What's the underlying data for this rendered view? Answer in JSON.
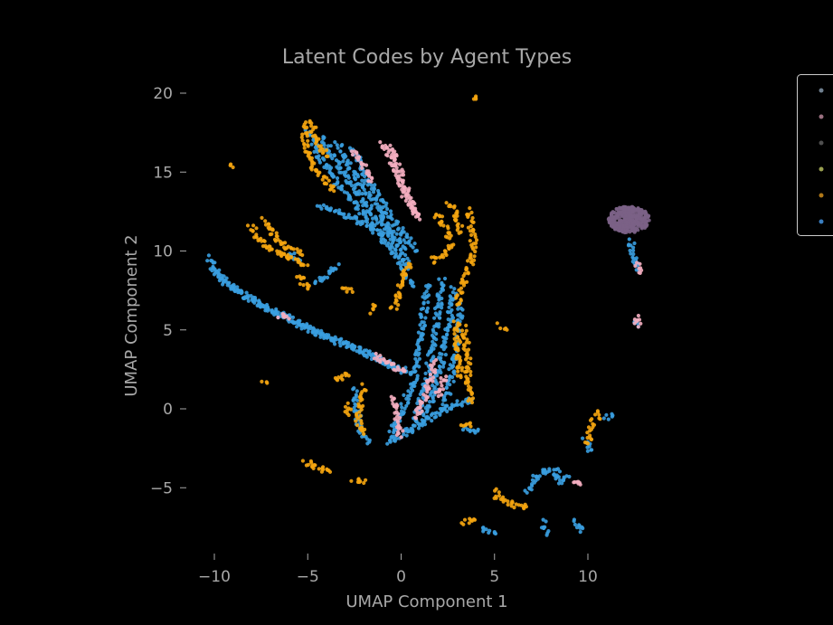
{
  "colors": {
    "background": "#000000",
    "text": "#a8a8a8",
    "orange": "#f5a50f",
    "blue": "#3a9ee0",
    "pink": "#f4aec0",
    "purple": "#7b6286",
    "legend_border": "#cccccc"
  },
  "chart_data": {
    "type": "scatter",
    "title": "Latent Codes by Agent Types",
    "xlabel": "UMAP Component 1",
    "ylabel": "UMAP Component 2",
    "xlim": [
      -11.5,
      14.5
    ],
    "ylim": [
      -9.2,
      20.8
    ],
    "x_ticks": [
      -10,
      -5,
      0,
      5,
      10
    ],
    "x_tick_labels": [
      "−10",
      "−5",
      "0",
      "5",
      "10"
    ],
    "y_ticks": [
      -5,
      0,
      5,
      10,
      15,
      20
    ],
    "y_tick_labels": [
      "−5",
      "0",
      "5",
      "10",
      "15",
      "20"
    ],
    "grid": false,
    "legend_position": "upper-right (partially cropped)",
    "legend_entries": [
      {
        "marker_color": "#6f7f8f"
      },
      {
        "marker_color": "#9a7080"
      },
      {
        "marker_color": "#4f4f4f"
      },
      {
        "marker_color": "#9aa050"
      },
      {
        "marker_color": "#b07818"
      },
      {
        "marker_color": "#3a7ec0"
      }
    ],
    "series": [
      {
        "color": "#3a9ee0",
        "paths": [
          [
            [
              -10.3,
              9.6
            ],
            [
              -9.6,
              8.2
            ],
            [
              -8.0,
              6.9
            ],
            [
              -6.0,
              5.7
            ],
            [
              -4.0,
              4.6
            ],
            [
              -2.0,
              3.7
            ],
            [
              -0.5,
              2.8
            ],
            [
              0.5,
              2.2
            ]
          ],
          [
            [
              -10.1,
              9.0
            ],
            [
              -9.3,
              7.9
            ],
            [
              -7.5,
              6.6
            ],
            [
              -5.5,
              5.4
            ],
            [
              -3.5,
              4.3
            ],
            [
              -1.5,
              3.3
            ],
            [
              0.0,
              2.4
            ]
          ],
          [
            [
              -5.0,
              17.6
            ],
            [
              -4.2,
              15.6
            ],
            [
              -3.2,
              14.0
            ],
            [
              -2.0,
              12.4
            ],
            [
              -1.0,
              10.8
            ],
            [
              0.0,
              9.2
            ],
            [
              0.6,
              7.8
            ]
          ],
          [
            [
              -4.2,
              17.2
            ],
            [
              -3.4,
              15.4
            ],
            [
              -2.4,
              13.8
            ],
            [
              -1.4,
              12.2
            ],
            [
              -0.4,
              10.6
            ],
            [
              0.4,
              9.0
            ]
          ],
          [
            [
              -3.4,
              16.8
            ],
            [
              -2.6,
              15.0
            ],
            [
              -1.6,
              13.4
            ],
            [
              -0.8,
              11.8
            ],
            [
              0.2,
              10.2
            ]
          ],
          [
            [
              -2.6,
              16.4
            ],
            [
              -1.8,
              14.6
            ],
            [
              -1.0,
              13.0
            ],
            [
              -0.2,
              11.6
            ],
            [
              0.8,
              10.0
            ]
          ],
          [
            [
              -4.4,
              12.8
            ],
            [
              -3.2,
              12.4
            ],
            [
              -2.0,
              11.8
            ],
            [
              -1.0,
              11.0
            ]
          ],
          [
            [
              1.4,
              7.8
            ],
            [
              1.2,
              6.0
            ],
            [
              1.0,
              4.0
            ],
            [
              0.7,
              2.0
            ],
            [
              0.2,
              0.4
            ],
            [
              -0.4,
              -1.2
            ],
            [
              -0.6,
              -2.0
            ]
          ],
          [
            [
              2.2,
              8.2
            ],
            [
              2.0,
              6.4
            ],
            [
              1.8,
              4.6
            ],
            [
              1.5,
              2.8
            ],
            [
              1.2,
              1.0
            ],
            [
              0.8,
              -0.6
            ],
            [
              0.4,
              -1.4
            ]
          ],
          [
            [
              2.8,
              7.6
            ],
            [
              2.6,
              5.8
            ],
            [
              2.3,
              4.0
            ],
            [
              2.0,
              2.2
            ],
            [
              1.6,
              0.4
            ],
            [
              1.2,
              -0.8
            ]
          ],
          [
            [
              3.2,
              6.6
            ],
            [
              3.0,
              4.8
            ],
            [
              2.8,
              3.0
            ],
            [
              2.6,
              1.2
            ],
            [
              2.2,
              0.0
            ]
          ],
          [
            [
              -0.6,
              -2.1
            ],
            [
              0.4,
              -1.4
            ],
            [
              1.6,
              -0.6
            ],
            [
              2.8,
              0.2
            ],
            [
              3.8,
              0.6
            ]
          ],
          [
            [
              -3.4,
              9.0
            ],
            [
              -4.0,
              8.4
            ],
            [
              -4.6,
              8.0
            ]
          ],
          [
            [
              -6.0,
              9.8
            ],
            [
              -5.4,
              9.4
            ]
          ],
          [
            [
              -2.5,
              1.2
            ],
            [
              -2.4,
              0.0
            ],
            [
              -2.2,
              -1.2
            ],
            [
              -1.8,
              -2.2
            ]
          ],
          [
            [
              3.4,
              -1.2
            ],
            [
              4.1,
              -1.4
            ]
          ],
          [
            [
              12.3,
              10.6
            ],
            [
              12.5,
              9.5
            ],
            [
              12.6,
              8.8
            ]
          ],
          [
            [
              6.7,
              -5.2
            ],
            [
              7.2,
              -4.4
            ],
            [
              7.6,
              -4.0
            ],
            [
              8.4,
              -3.8
            ]
          ],
          [
            [
              8.0,
              -4.2
            ],
            [
              8.6,
              -4.6
            ],
            [
              9.0,
              -4.3
            ]
          ],
          [
            [
              7.6,
              -7.2
            ],
            [
              7.8,
              -8.0
            ]
          ],
          [
            [
              9.4,
              -7.0
            ],
            [
              9.6,
              -7.8
            ]
          ],
          [
            [
              4.3,
              -7.6
            ],
            [
              5.0,
              -7.8
            ]
          ],
          [
            [
              9.8,
              -2.0
            ],
            [
              10.2,
              -2.6
            ]
          ],
          [
            [
              12.5,
              5.6
            ],
            [
              12.7,
              5.2
            ]
          ],
          [
            [
              10.9,
              -0.5
            ],
            [
              11.3,
              -0.5
            ]
          ]
        ]
      },
      {
        "color": "#f5a50f",
        "paths": [
          [
            [
              -5.1,
              18.1
            ],
            [
              -5.2,
              16.8
            ],
            [
              -4.8,
              15.5
            ],
            [
              -4.2,
              14.6
            ],
            [
              -3.6,
              13.8
            ]
          ],
          [
            [
              -4.8,
              18.2
            ],
            [
              -4.5,
              17.0
            ],
            [
              -4.0,
              16.0
            ]
          ],
          [
            [
              -8.1,
              11.6
            ],
            [
              -7.5,
              10.6
            ],
            [
              -6.8,
              10.0
            ],
            [
              -5.8,
              9.5
            ],
            [
              -5.0,
              9.1
            ]
          ],
          [
            [
              -7.3,
              12.0
            ],
            [
              -6.8,
              11.0
            ],
            [
              -6.2,
              10.4
            ],
            [
              -5.4,
              9.8
            ]
          ],
          [
            [
              -5.5,
              8.5
            ],
            [
              -5.2,
              8.0
            ],
            [
              -5.0,
              7.6
            ]
          ],
          [
            [
              -0.4,
              6.4
            ],
            [
              -0.1,
              7.4
            ],
            [
              0.1,
              8.4
            ],
            [
              0.4,
              9.2
            ]
          ],
          [
            [
              2.6,
              13.0
            ],
            [
              3.0,
              12.2
            ],
            [
              3.2,
              11.2
            ]
          ],
          [
            [
              3.6,
              12.6
            ],
            [
              3.8,
              11.4
            ],
            [
              3.9,
              10.4
            ],
            [
              3.7,
              9.2
            ],
            [
              3.3,
              8.0
            ],
            [
              3.0,
              6.6
            ]
          ],
          [
            [
              1.8,
              12.4
            ],
            [
              2.3,
              11.6
            ],
            [
              2.6,
              10.8
            ]
          ],
          [
            [
              1.6,
              9.4
            ],
            [
              2.2,
              9.8
            ],
            [
              2.8,
              10.4
            ]
          ],
          [
            [
              3.3,
              5.2
            ],
            [
              3.5,
              4.0
            ],
            [
              3.6,
              2.8
            ],
            [
              3.6,
              1.6
            ],
            [
              3.8,
              0.4
            ]
          ],
          [
            [
              2.9,
              5.6
            ],
            [
              3.0,
              4.4
            ],
            [
              3.1,
              3.2
            ],
            [
              3.2,
              2.0
            ]
          ],
          [
            [
              -2.0,
              1.4
            ],
            [
              -2.2,
              0.2
            ],
            [
              -2.3,
              -0.8
            ],
            [
              -2.0,
              -1.6
            ]
          ],
          [
            [
              -2.9,
              0.2
            ],
            [
              -2.8,
              -0.4
            ]
          ],
          [
            [
              5.0,
              -5.2
            ],
            [
              5.2,
              -5.6
            ],
            [
              5.6,
              -5.9
            ],
            [
              6.2,
              -6.1
            ],
            [
              6.7,
              -6.2
            ]
          ],
          [
            [
              10.2,
              -0.8
            ],
            [
              10.1,
              -1.6
            ],
            [
              10.0,
              -2.2
            ]
          ],
          [
            [
              10.4,
              -0.2
            ],
            [
              10.6,
              -0.6
            ]
          ],
          [
            [
              3.8,
              19.6
            ],
            [
              4.0,
              19.8
            ]
          ],
          [
            [
              -9.1,
              15.4
            ],
            [
              -9.0,
              15.3
            ]
          ],
          [
            [
              -1.6,
              6.2
            ],
            [
              -1.5,
              6.6
            ]
          ],
          [
            [
              -7.3,
              1.8
            ],
            [
              -7.2,
              1.7
            ]
          ],
          [
            [
              5.3,
              5.3
            ],
            [
              5.6,
              5.1
            ]
          ],
          [
            [
              3.3,
              -7.2
            ],
            [
              3.9,
              -7.0
            ]
          ],
          [
            [
              -2.5,
              -4.4
            ],
            [
              -2.0,
              -4.7
            ]
          ],
          [
            [
              -5.1,
              -3.4
            ],
            [
              -3.8,
              -4.0
            ]
          ],
          [
            [
              3.3,
              -1.2
            ],
            [
              3.7,
              -0.9
            ]
          ],
          [
            [
              -3.5,
              1.8
            ],
            [
              -2.8,
              2.1
            ]
          ],
          [
            [
              -3.0,
              7.7
            ],
            [
              -2.6,
              7.4
            ]
          ]
        ]
      },
      {
        "color": "#f4aec0",
        "paths": [
          [
            [
              -1.0,
              16.8
            ],
            [
              -0.5,
              15.8
            ],
            [
              -0.2,
              14.8
            ],
            [
              0.2,
              13.6
            ],
            [
              0.6,
              12.6
            ],
            [
              1.0,
              12.0
            ]
          ],
          [
            [
              -0.6,
              16.6
            ],
            [
              -0.2,
              15.4
            ],
            [
              0.1,
              14.4
            ],
            [
              0.5,
              13.2
            ],
            [
              0.9,
              12.2
            ]
          ],
          [
            [
              -2.6,
              16.4
            ],
            [
              -2.0,
              15.4
            ],
            [
              -1.6,
              14.4
            ]
          ],
          [
            [
              -1.4,
              3.4
            ],
            [
              -0.6,
              2.8
            ],
            [
              0.2,
              2.4
            ]
          ],
          [
            [
              1.8,
              3.0
            ],
            [
              1.5,
              1.6
            ],
            [
              1.2,
              0.4
            ],
            [
              0.8,
              -0.6
            ]
          ],
          [
            [
              2.3,
              2.0
            ],
            [
              2.0,
              0.8
            ]
          ],
          [
            [
              -0.4,
              0.8
            ],
            [
              -0.2,
              -0.8
            ],
            [
              0.0,
              -1.8
            ]
          ],
          [
            [
              9.2,
              -4.5
            ],
            [
              9.6,
              -4.8
            ]
          ],
          [
            [
              12.6,
              9.2
            ],
            [
              12.8,
              8.6
            ]
          ],
          [
            [
              12.6,
              5.8
            ],
            [
              12.7,
              5.2
            ]
          ],
          [
            [
              -6.5,
              5.9
            ],
            [
              -6.0,
              5.7
            ]
          ]
        ]
      },
      {
        "color": "#7b6286",
        "paths": []
      }
    ],
    "cluster": {
      "color": "#7b6286",
      "center": [
        12.2,
        12.0
      ],
      "radius_x": 1.1,
      "radius_y": 0.85
    }
  }
}
